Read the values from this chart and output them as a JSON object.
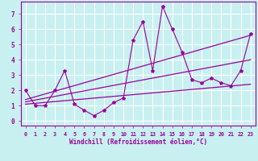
{
  "xlabel": "Windchill (Refroidissement éolien,°C)",
  "bg_color": "#c8f0f0",
  "grid_color": "#ffffff",
  "line_color": "#990099",
  "xlim": [
    -0.5,
    23.5
  ],
  "ylim": [
    -0.3,
    7.8
  ],
  "xticks": [
    0,
    1,
    2,
    3,
    4,
    5,
    6,
    7,
    8,
    9,
    10,
    11,
    12,
    13,
    14,
    15,
    16,
    17,
    18,
    19,
    20,
    21,
    22,
    23
  ],
  "yticks": [
    0,
    1,
    2,
    3,
    4,
    5,
    6,
    7
  ],
  "data_x": [
    0,
    1,
    2,
    3,
    4,
    5,
    6,
    7,
    8,
    9,
    10,
    11,
    12,
    13,
    14,
    15,
    16,
    17,
    18,
    19,
    20,
    21,
    22,
    23
  ],
  "data_y": [
    2.0,
    1.0,
    1.0,
    2.0,
    3.3,
    1.1,
    0.7,
    0.35,
    0.7,
    1.2,
    1.5,
    5.3,
    6.5,
    3.3,
    7.5,
    6.0,
    4.5,
    2.7,
    2.5,
    2.8,
    2.5,
    2.3,
    3.3,
    5.7
  ],
  "trend1_x": [
    0,
    23
  ],
  "trend1_y": [
    1.4,
    5.6
  ],
  "trend2_x": [
    0,
    23
  ],
  "trend2_y": [
    1.1,
    2.4
  ],
  "trend3_x": [
    0,
    23
  ],
  "trend3_y": [
    1.25,
    4.0
  ],
  "xlabel_fontsize": 5.5,
  "tick_fontsize_x": 4.8,
  "tick_fontsize_y": 5.5
}
